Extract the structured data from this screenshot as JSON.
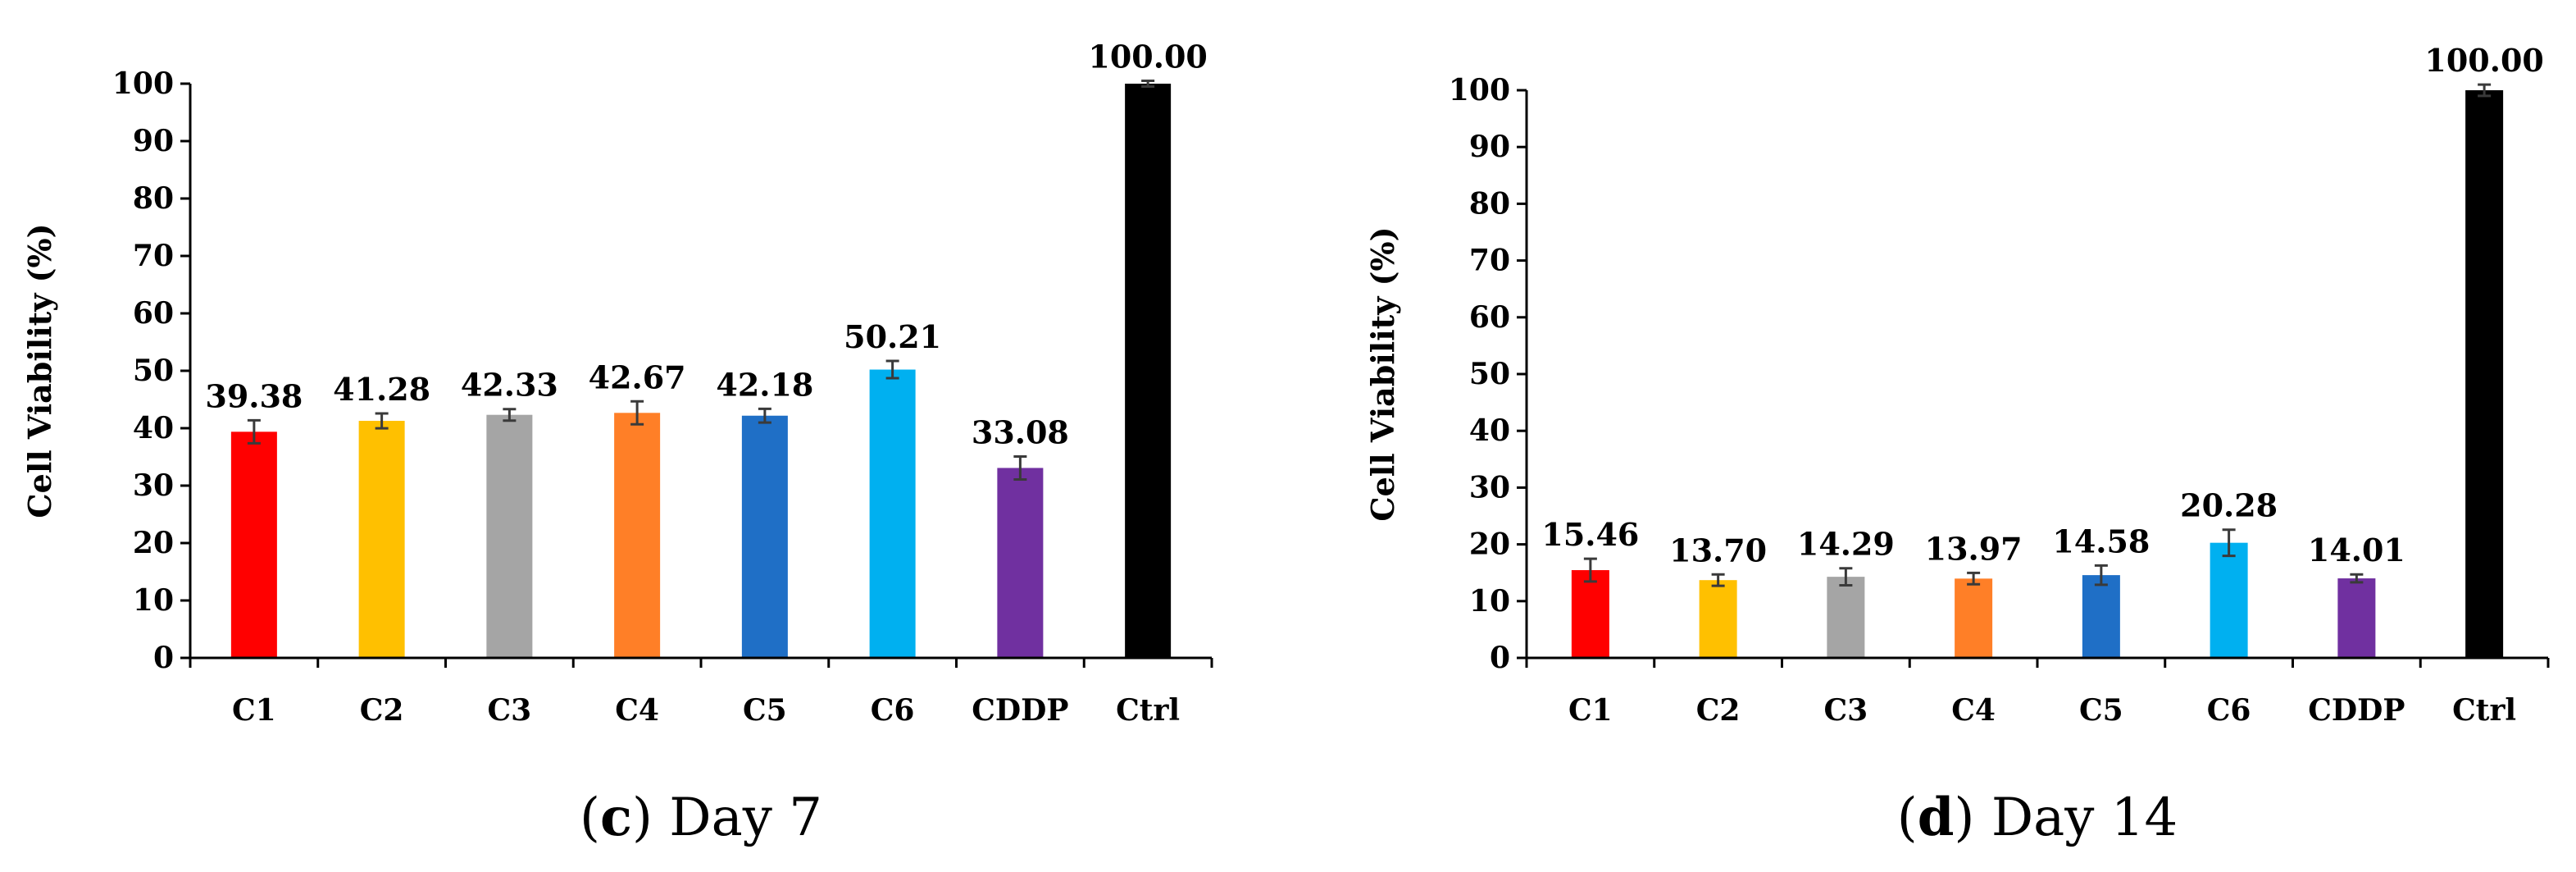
{
  "chart_data": [
    {
      "type": "bar",
      "panel_letter": "c",
      "caption_text": "Day 7",
      "categories": [
        "C1",
        "C2",
        "C3",
        "C4",
        "C5",
        "C6",
        "CDDP",
        "Ctrl"
      ],
      "values": [
        39.38,
        41.28,
        42.33,
        42.67,
        42.18,
        50.21,
        33.08,
        100.0
      ],
      "value_labels": [
        "39.38",
        "41.28",
        "42.33",
        "42.67",
        "42.18",
        "50.21",
        "33.08",
        "100.00"
      ],
      "errors": [
        2.0,
        1.3,
        1.0,
        2.0,
        1.2,
        1.5,
        2.0,
        0.5
      ],
      "colors": [
        "#ff0000",
        "#ffc000",
        "#a5a5a5",
        "#ff7f27",
        "#1f6fc6",
        "#00b0f0",
        "#7030a0",
        "#000000"
      ],
      "ylabel": "Cell Viability (%)",
      "ylim": [
        0,
        100
      ],
      "yticks": [
        "0",
        "10",
        "20",
        "30",
        "40",
        "50",
        "60",
        "70",
        "80",
        "90",
        "100"
      ]
    },
    {
      "type": "bar",
      "panel_letter": "d",
      "caption_text": "Day 14",
      "categories": [
        "C1",
        "C2",
        "C3",
        "C4",
        "C5",
        "C6",
        "CDDP",
        "Ctrl"
      ],
      "values": [
        15.46,
        13.7,
        14.29,
        13.97,
        14.58,
        20.28,
        14.01,
        100.0
      ],
      "value_labels": [
        "15.46",
        "13.70",
        "14.29",
        "13.97",
        "14.58",
        "20.28",
        "14.01",
        "100.00"
      ],
      "errors": [
        2.0,
        1.0,
        1.5,
        1.0,
        1.7,
        2.3,
        0.7,
        1.0
      ],
      "colors": [
        "#ff0000",
        "#ffc000",
        "#a5a5a5",
        "#ff7f27",
        "#1f6fc6",
        "#00b0f0",
        "#7030a0",
        "#000000"
      ],
      "ylabel": "Cell Viability (%)",
      "ylim": [
        0,
        100
      ],
      "yticks": [
        "0",
        "10",
        "20",
        "30",
        "40",
        "50",
        "60",
        "70",
        "80",
        "90",
        "100"
      ]
    }
  ]
}
